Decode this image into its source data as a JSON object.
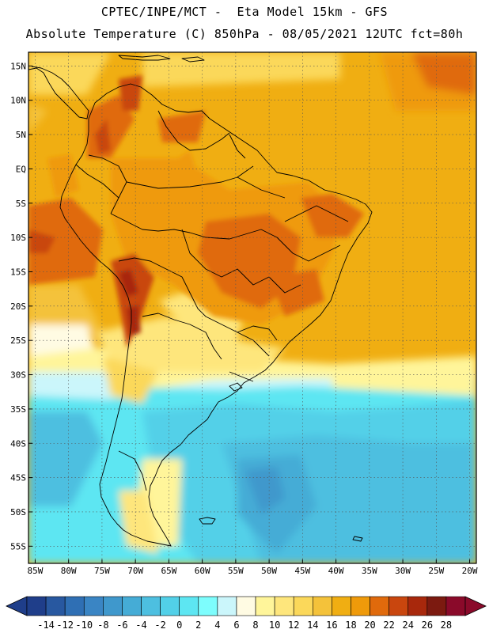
{
  "header": {
    "line1": "CPTEC/INPE/MCT -  Eta Model 15km - GFS",
    "line2": "Absolute Temperature (C) 850hPa - 08/05/2021 12UTC fct=80h"
  },
  "map": {
    "lon_range": [
      -86,
      -19
    ],
    "lat_range": [
      -57.5,
      17
    ],
    "lat_ticks": [
      {
        "lat": 15,
        "label": "15N"
      },
      {
        "lat": 10,
        "label": "10N"
      },
      {
        "lat": 5,
        "label": "5N"
      },
      {
        "lat": 0,
        "label": "EQ"
      },
      {
        "lat": -5,
        "label": "5S"
      },
      {
        "lat": -10,
        "label": "10S"
      },
      {
        "lat": -15,
        "label": "15S"
      },
      {
        "lat": -20,
        "label": "20S"
      },
      {
        "lat": -25,
        "label": "25S"
      },
      {
        "lat": -30,
        "label": "30S"
      },
      {
        "lat": -35,
        "label": "35S"
      },
      {
        "lat": -40,
        "label": "40S"
      },
      {
        "lat": -45,
        "label": "45S"
      },
      {
        "lat": -50,
        "label": "50S"
      },
      {
        "lat": -55,
        "label": "55S"
      }
    ],
    "lon_ticks": [
      {
        "lon": -85,
        "label": "85W"
      },
      {
        "lon": -80,
        "label": "80W"
      },
      {
        "lon": -75,
        "label": "75W"
      },
      {
        "lon": -70,
        "label": "70W"
      },
      {
        "lon": -65,
        "label": "65W"
      },
      {
        "lon": -60,
        "label": "60W"
      },
      {
        "lon": -55,
        "label": "55W"
      },
      {
        "lon": -50,
        "label": "50W"
      },
      {
        "lon": -45,
        "label": "45W"
      },
      {
        "lon": -40,
        "label": "40W"
      },
      {
        "lon": -35,
        "label": "35W"
      },
      {
        "lon": -30,
        "label": "30W"
      },
      {
        "lon": -25,
        "label": "25W"
      },
      {
        "lon": -20,
        "label": "20W"
      }
    ],
    "grid": true
  },
  "colorbar": {
    "labels": [
      "-14",
      "-12",
      "-10",
      "-8",
      "-6",
      "-4",
      "-2",
      "0",
      "2",
      "4",
      "6",
      "8",
      "10",
      "12",
      "14",
      "16",
      "18",
      "20",
      "22",
      "24",
      "26",
      "28"
    ],
    "colors": [
      "#1f3e8a",
      "#2858a0",
      "#2f6fb4",
      "#3a85c4",
      "#3f98cc",
      "#45acd6",
      "#4dbfe0",
      "#52d0e8",
      "#5de6f2",
      "#7dfdfd",
      "#cbf6fb",
      "#fffbe3",
      "#fff59a",
      "#fee67c",
      "#fbd85a",
      "#f4c23a",
      "#f0ae12",
      "#ef9a0a",
      "#e06a0c",
      "#c9460e",
      "#a8280c",
      "#7c1a10",
      "#8a0a2a"
    ]
  }
}
